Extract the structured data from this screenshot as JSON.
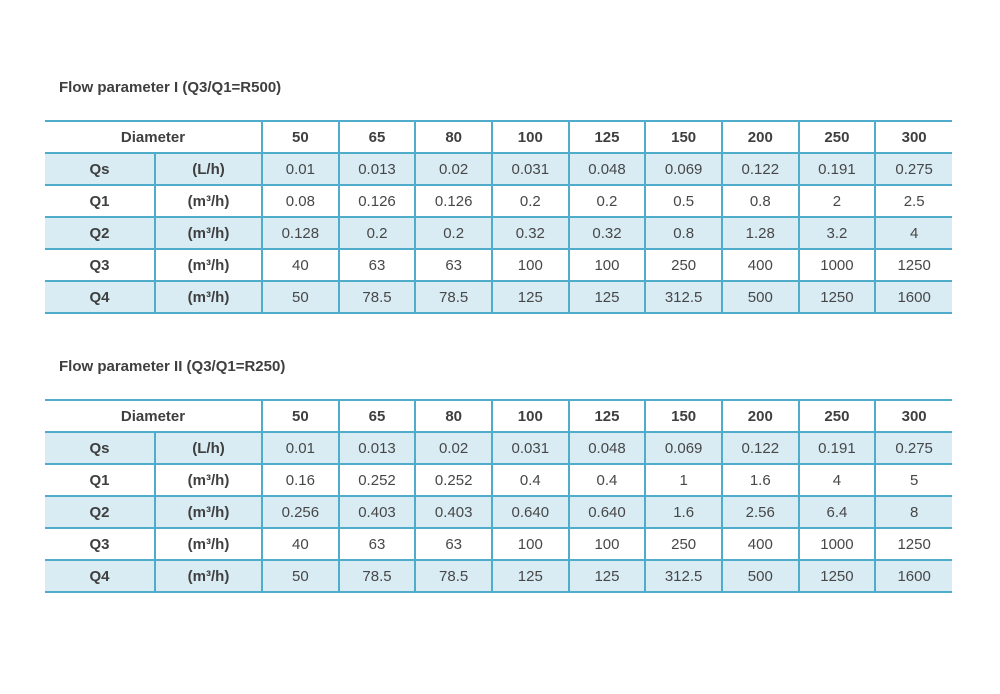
{
  "colors": {
    "border": "#4fadcb",
    "row_shade": "#d9ecf4",
    "text": "#474747",
    "title_text": "#3f3f3f",
    "background": "#ffffff"
  },
  "tables": [
    {
      "title": "Flow parameter I (Q3/Q1=R500)",
      "header": {
        "label": "Diameter",
        "columns": [
          "50",
          "65",
          "80",
          "100",
          "125",
          "150",
          "200",
          "250",
          "300"
        ]
      },
      "rows": [
        {
          "name": "Qs",
          "unit": "(L/h)",
          "values": [
            "0.01",
            "0.013",
            "0.02",
            "0.031",
            "0.048",
            "0.069",
            "0.122",
            "0.191",
            "0.275"
          ]
        },
        {
          "name": "Q1",
          "unit": "(m³/h)",
          "values": [
            "0.08",
            "0.126",
            "0.126",
            "0.2",
            "0.2",
            "0.5",
            "0.8",
            "2",
            "2.5"
          ]
        },
        {
          "name": "Q2",
          "unit": "(m³/h)",
          "values": [
            "0.128",
            "0.2",
            "0.2",
            "0.32",
            "0.32",
            "0.8",
            "1.28",
            "3.2",
            "4"
          ]
        },
        {
          "name": "Q3",
          "unit": "(m³/h)",
          "values": [
            "40",
            "63",
            "63",
            "100",
            "100",
            "250",
            "400",
            "1000",
            "1250"
          ]
        },
        {
          "name": "Q4",
          "unit": "(m³/h)",
          "values": [
            "50",
            "78.5",
            "78.5",
            "125",
            "125",
            "312.5",
            "500",
            "1250",
            "1600"
          ]
        }
      ]
    },
    {
      "title": "Flow parameter II (Q3/Q1=R250)",
      "header": {
        "label": "Diameter",
        "columns": [
          "50",
          "65",
          "80",
          "100",
          "125",
          "150",
          "200",
          "250",
          "300"
        ]
      },
      "rows": [
        {
          "name": "Qs",
          "unit": "(L/h)",
          "values": [
            "0.01",
            "0.013",
            "0.02",
            "0.031",
            "0.048",
            "0.069",
            "0.122",
            "0.191",
            "0.275"
          ]
        },
        {
          "name": "Q1",
          "unit": "(m³/h)",
          "values": [
            "0.16",
            "0.252",
            "0.252",
            "0.4",
            "0.4",
            "1",
            "1.6",
            "4",
            "5"
          ]
        },
        {
          "name": "Q2",
          "unit": "(m³/h)",
          "values": [
            "0.256",
            "0.403",
            "0.403",
            "0.640",
            "0.640",
            "1.6",
            "2.56",
            "6.4",
            "8"
          ]
        },
        {
          "name": "Q3",
          "unit": "(m³/h)",
          "values": [
            "40",
            "63",
            "63",
            "100",
            "100",
            "250",
            "400",
            "1000",
            "1250"
          ]
        },
        {
          "name": "Q4",
          "unit": "(m³/h)",
          "values": [
            "50",
            "78.5",
            "78.5",
            "125",
            "125",
            "312.5",
            "500",
            "1250",
            "1600"
          ]
        }
      ]
    }
  ]
}
